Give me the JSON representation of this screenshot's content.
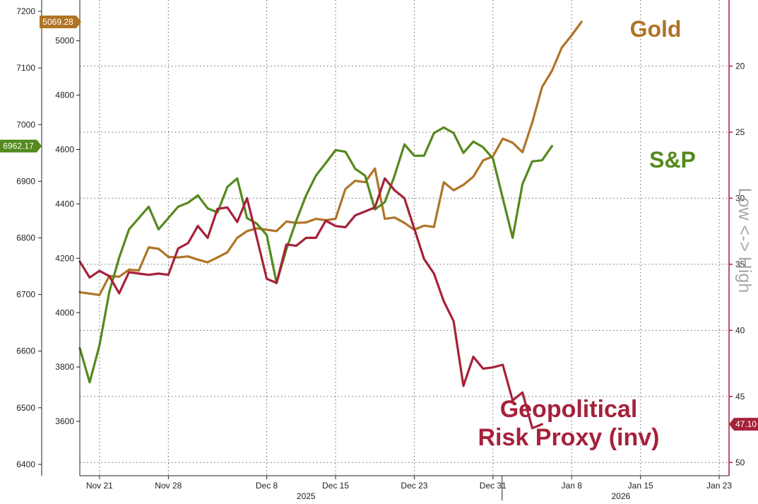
{
  "chart_data": {
    "type": "line",
    "title": "",
    "xlabel": "",
    "grid": true,
    "legend": "none",
    "x_ticks": [
      "Nov 21",
      "Nov 28",
      "Dec 8",
      "Dec 15",
      "Dec 23",
      "Dec 31",
      "Jan 8",
      "Jan 15",
      "Jan 23"
    ],
    "x_tick_dates": [
      "2025-11-21",
      "2025-11-28",
      "2025-12-08",
      "2025-12-15",
      "2025-12-23",
      "2025-12-31",
      "2026-01-08",
      "2026-01-15",
      "2026-01-23"
    ],
    "year_labels": [
      {
        "text": "2025",
        "date": "2025-12-12"
      },
      {
        "text": "2026",
        "date": "2026-01-13"
      }
    ],
    "x_range": [
      "2025-11-19",
      "2026-01-24"
    ],
    "axes": {
      "left_outer": {
        "series": "S&P",
        "range": [
          6380,
          7220
        ],
        "ticks": [
          6400,
          6500,
          6600,
          6700,
          6800,
          6900,
          7000,
          7100,
          7200
        ]
      },
      "left_inner": {
        "series": "Gold",
        "range": [
          3400,
          5150
        ],
        "ticks": [
          3600,
          3800,
          4000,
          4200,
          4400,
          4600,
          4800,
          5000
        ]
      },
      "right": {
        "series": "Geopolitical Risk Proxy (inv)",
        "range": [
          15,
          51
        ],
        "inverted": true,
        "ticks": [
          20,
          25,
          30,
          35,
          40,
          45,
          50
        ],
        "label": "Low <-> High"
      }
    },
    "series": [
      {
        "name": "Gold",
        "axis": "left_inner",
        "color": "#b07426",
        "last_value_label": "5069.28",
        "points": [
          [
            "2025-11-19",
            4075
          ],
          [
            "2025-11-20",
            4070
          ],
          [
            "2025-11-21",
            4065
          ],
          [
            "2025-11-22",
            4135
          ],
          [
            "2025-11-23",
            4132
          ],
          [
            "2025-11-24",
            4158
          ],
          [
            "2025-11-25",
            4155
          ],
          [
            "2025-11-26",
            4240
          ],
          [
            "2025-11-27",
            4235
          ],
          [
            "2025-11-28",
            4205
          ],
          [
            "2025-11-29",
            4203
          ],
          [
            "2025-11-30",
            4207
          ],
          [
            "2025-12-01",
            4195
          ],
          [
            "2025-12-02",
            4185
          ],
          [
            "2025-12-03",
            4203
          ],
          [
            "2025-12-04",
            4222
          ],
          [
            "2025-12-05",
            4275
          ],
          [
            "2025-12-06",
            4300
          ],
          [
            "2025-12-07",
            4310
          ],
          [
            "2025-12-08",
            4305
          ],
          [
            "2025-12-09",
            4300
          ],
          [
            "2025-12-10",
            4335
          ],
          [
            "2025-12-11",
            4330
          ],
          [
            "2025-12-12",
            4332
          ],
          [
            "2025-12-13",
            4345
          ],
          [
            "2025-12-14",
            4340
          ],
          [
            "2025-12-15",
            4345
          ],
          [
            "2025-12-16",
            4455
          ],
          [
            "2025-12-17",
            4485
          ],
          [
            "2025-12-18",
            4480
          ],
          [
            "2025-12-19",
            4530
          ],
          [
            "2025-12-20",
            4345
          ],
          [
            "2025-12-21",
            4350
          ],
          [
            "2025-12-22",
            4330
          ],
          [
            "2025-12-23",
            4305
          ],
          [
            "2025-12-24",
            4320
          ],
          [
            "2025-12-25",
            4315
          ],
          [
            "2025-12-26",
            4480
          ],
          [
            "2025-12-27",
            4450
          ],
          [
            "2025-12-28",
            4470
          ],
          [
            "2025-12-29",
            4500
          ],
          [
            "2025-12-30",
            4560
          ],
          [
            "2025-12-31",
            4575
          ],
          [
            "2026-01-01",
            4640
          ],
          [
            "2026-01-02",
            4625
          ],
          [
            "2026-01-03",
            4590
          ],
          [
            "2026-01-04",
            4700
          ],
          [
            "2026-01-05",
            4830
          ],
          [
            "2026-01-06",
            4890
          ],
          [
            "2026-01-07",
            4975
          ],
          [
            "2026-01-08",
            5020
          ],
          [
            "2026-01-09",
            5069.28
          ]
        ]
      },
      {
        "name": "S&P",
        "axis": "left_outer",
        "color": "#54891c",
        "last_value_label": "6962.17",
        "points": [
          [
            "2025-11-19",
            6605
          ],
          [
            "2025-11-20",
            6545
          ],
          [
            "2025-11-21",
            6610
          ],
          [
            "2025-11-22",
            6705
          ],
          [
            "2025-11-23",
            6765
          ],
          [
            "2025-11-24",
            6815
          ],
          [
            "2025-11-25",
            6835
          ],
          [
            "2025-11-26",
            6855
          ],
          [
            "2025-11-27",
            6815
          ],
          [
            "2025-11-28",
            6835
          ],
          [
            "2025-11-29",
            6855
          ],
          [
            "2025-11-30",
            6862
          ],
          [
            "2025-12-01",
            6875
          ],
          [
            "2025-12-02",
            6852
          ],
          [
            "2025-12-03",
            6845
          ],
          [
            "2025-12-04",
            6890
          ],
          [
            "2025-12-05",
            6905
          ],
          [
            "2025-12-06",
            6835
          ],
          [
            "2025-12-07",
            6825
          ],
          [
            "2025-12-08",
            6805
          ],
          [
            "2025-12-09",
            6720
          ],
          [
            "2025-12-10",
            6780
          ],
          [
            "2025-12-11",
            6830
          ],
          [
            "2025-12-12",
            6875
          ],
          [
            "2025-12-13",
            6910
          ],
          [
            "2025-12-14",
            6932
          ],
          [
            "2025-12-15",
            6955
          ],
          [
            "2025-12-16",
            6952
          ],
          [
            "2025-12-17",
            6922
          ],
          [
            "2025-12-18",
            6910
          ],
          [
            "2025-12-19",
            6850
          ],
          [
            "2025-12-20",
            6863
          ],
          [
            "2025-12-21",
            6910
          ],
          [
            "2025-12-22",
            6965
          ],
          [
            "2025-12-23",
            6945
          ],
          [
            "2025-12-24",
            6945
          ],
          [
            "2025-12-25",
            6985
          ],
          [
            "2025-12-26",
            6995
          ],
          [
            "2025-12-27",
            6985
          ],
          [
            "2025-12-28",
            6950
          ],
          [
            "2025-12-29",
            6970
          ],
          [
            "2025-12-30",
            6960
          ],
          [
            "2025-12-31",
            6940
          ],
          [
            "2026-01-01",
            6870
          ],
          [
            "2026-01-02",
            6800
          ],
          [
            "2026-01-03",
            6895
          ],
          [
            "2026-01-04",
            6935
          ],
          [
            "2026-01-05",
            6937
          ],
          [
            "2026-01-06",
            6962.17
          ]
        ]
      },
      {
        "name": "Geopolitical Risk Proxy (inv)",
        "axis": "right",
        "color": "#a6213a",
        "last_value_label": "47.10",
        "points": [
          [
            "2025-11-19",
            34.8
          ],
          [
            "2025-11-20",
            36.0
          ],
          [
            "2025-11-21",
            35.5
          ],
          [
            "2025-11-22",
            35.9
          ],
          [
            "2025-11-23",
            37.2
          ],
          [
            "2025-11-24",
            35.6
          ],
          [
            "2025-11-25",
            35.7
          ],
          [
            "2025-11-26",
            35.8
          ],
          [
            "2025-11-27",
            35.7
          ],
          [
            "2025-11-28",
            35.8
          ],
          [
            "2025-11-29",
            33.8
          ],
          [
            "2025-11-30",
            33.4
          ],
          [
            "2025-12-01",
            32.1
          ],
          [
            "2025-12-02",
            33.0
          ],
          [
            "2025-12-03",
            30.8
          ],
          [
            "2025-12-04",
            30.7
          ],
          [
            "2025-12-05",
            31.8
          ],
          [
            "2025-12-06",
            30.0
          ],
          [
            "2025-12-07",
            33.0
          ],
          [
            "2025-12-08",
            36.1
          ],
          [
            "2025-12-09",
            36.4
          ],
          [
            "2025-12-10",
            33.5
          ],
          [
            "2025-12-11",
            33.6
          ],
          [
            "2025-12-12",
            33.0
          ],
          [
            "2025-12-13",
            33.0
          ],
          [
            "2025-12-14",
            31.7
          ],
          [
            "2025-12-15",
            32.1
          ],
          [
            "2025-12-16",
            32.2
          ],
          [
            "2025-12-17",
            31.3
          ],
          [
            "2025-12-18",
            31.0
          ],
          [
            "2025-12-19",
            30.7
          ],
          [
            "2025-12-20",
            28.5
          ],
          [
            "2025-12-21",
            29.4
          ],
          [
            "2025-12-22",
            30.0
          ],
          [
            "2025-12-23",
            32.3
          ],
          [
            "2025-12-24",
            34.6
          ],
          [
            "2025-12-25",
            35.7
          ],
          [
            "2025-12-26",
            37.8
          ],
          [
            "2025-12-27",
            39.3
          ],
          [
            "2025-12-28",
            44.2
          ],
          [
            "2025-12-29",
            42.0
          ],
          [
            "2025-12-30",
            42.9
          ],
          [
            "2025-12-31",
            42.8
          ],
          [
            "2026-01-01",
            42.6
          ],
          [
            "2026-01-02",
            45.3
          ],
          [
            "2026-01-03",
            44.7
          ],
          [
            "2026-01-04",
            47.4
          ],
          [
            "2026-01-05",
            47.1
          ]
        ]
      }
    ],
    "annotations": [
      {
        "text": "Gold",
        "color": "#b07426"
      },
      {
        "text": "S&P",
        "color": "#54891c"
      },
      {
        "text": "Geopolitical",
        "color": "#a6213a"
      },
      {
        "text": "Risk Proxy (inv)",
        "color": "#a6213a"
      }
    ]
  }
}
